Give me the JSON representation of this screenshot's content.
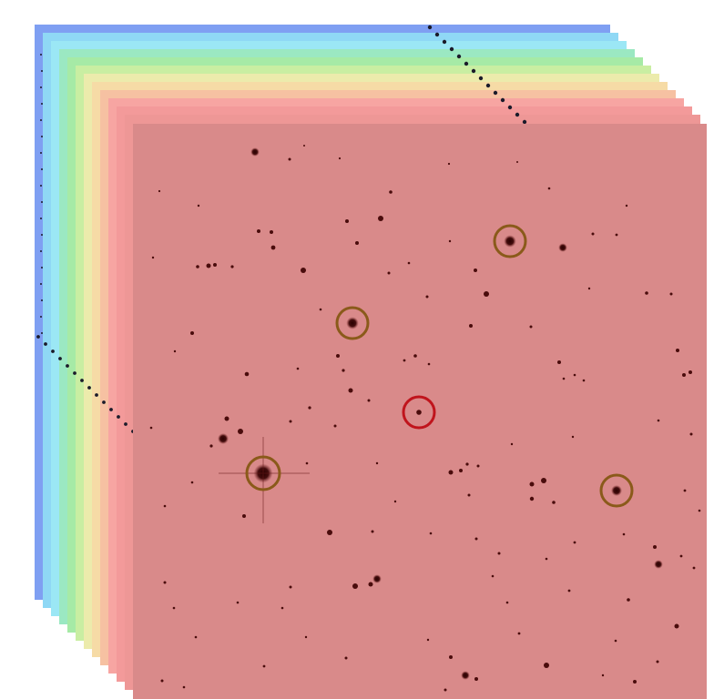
{
  "scene": {
    "description_free": true
  },
  "frames": [
    {
      "color": "#7f9ff2"
    },
    {
      "color": "#8fd8f5"
    },
    {
      "color": "#9be7f5"
    },
    {
      "color": "#9be8c2"
    },
    {
      "color": "#a6eaa6"
    },
    {
      "color": "#c9eea2"
    },
    {
      "color": "#ecebac"
    },
    {
      "color": "#f6dba6"
    },
    {
      "color": "#f6c1a2"
    },
    {
      "color": "#f7a5a2"
    },
    {
      "color": "#f39a9a"
    },
    {
      "color": "#ee9796"
    }
  ],
  "front_frame": {
    "color": "#d98a8a"
  },
  "markers": {
    "reference_color": "#8a5a1a",
    "target_color": "#c0141c"
  }
}
